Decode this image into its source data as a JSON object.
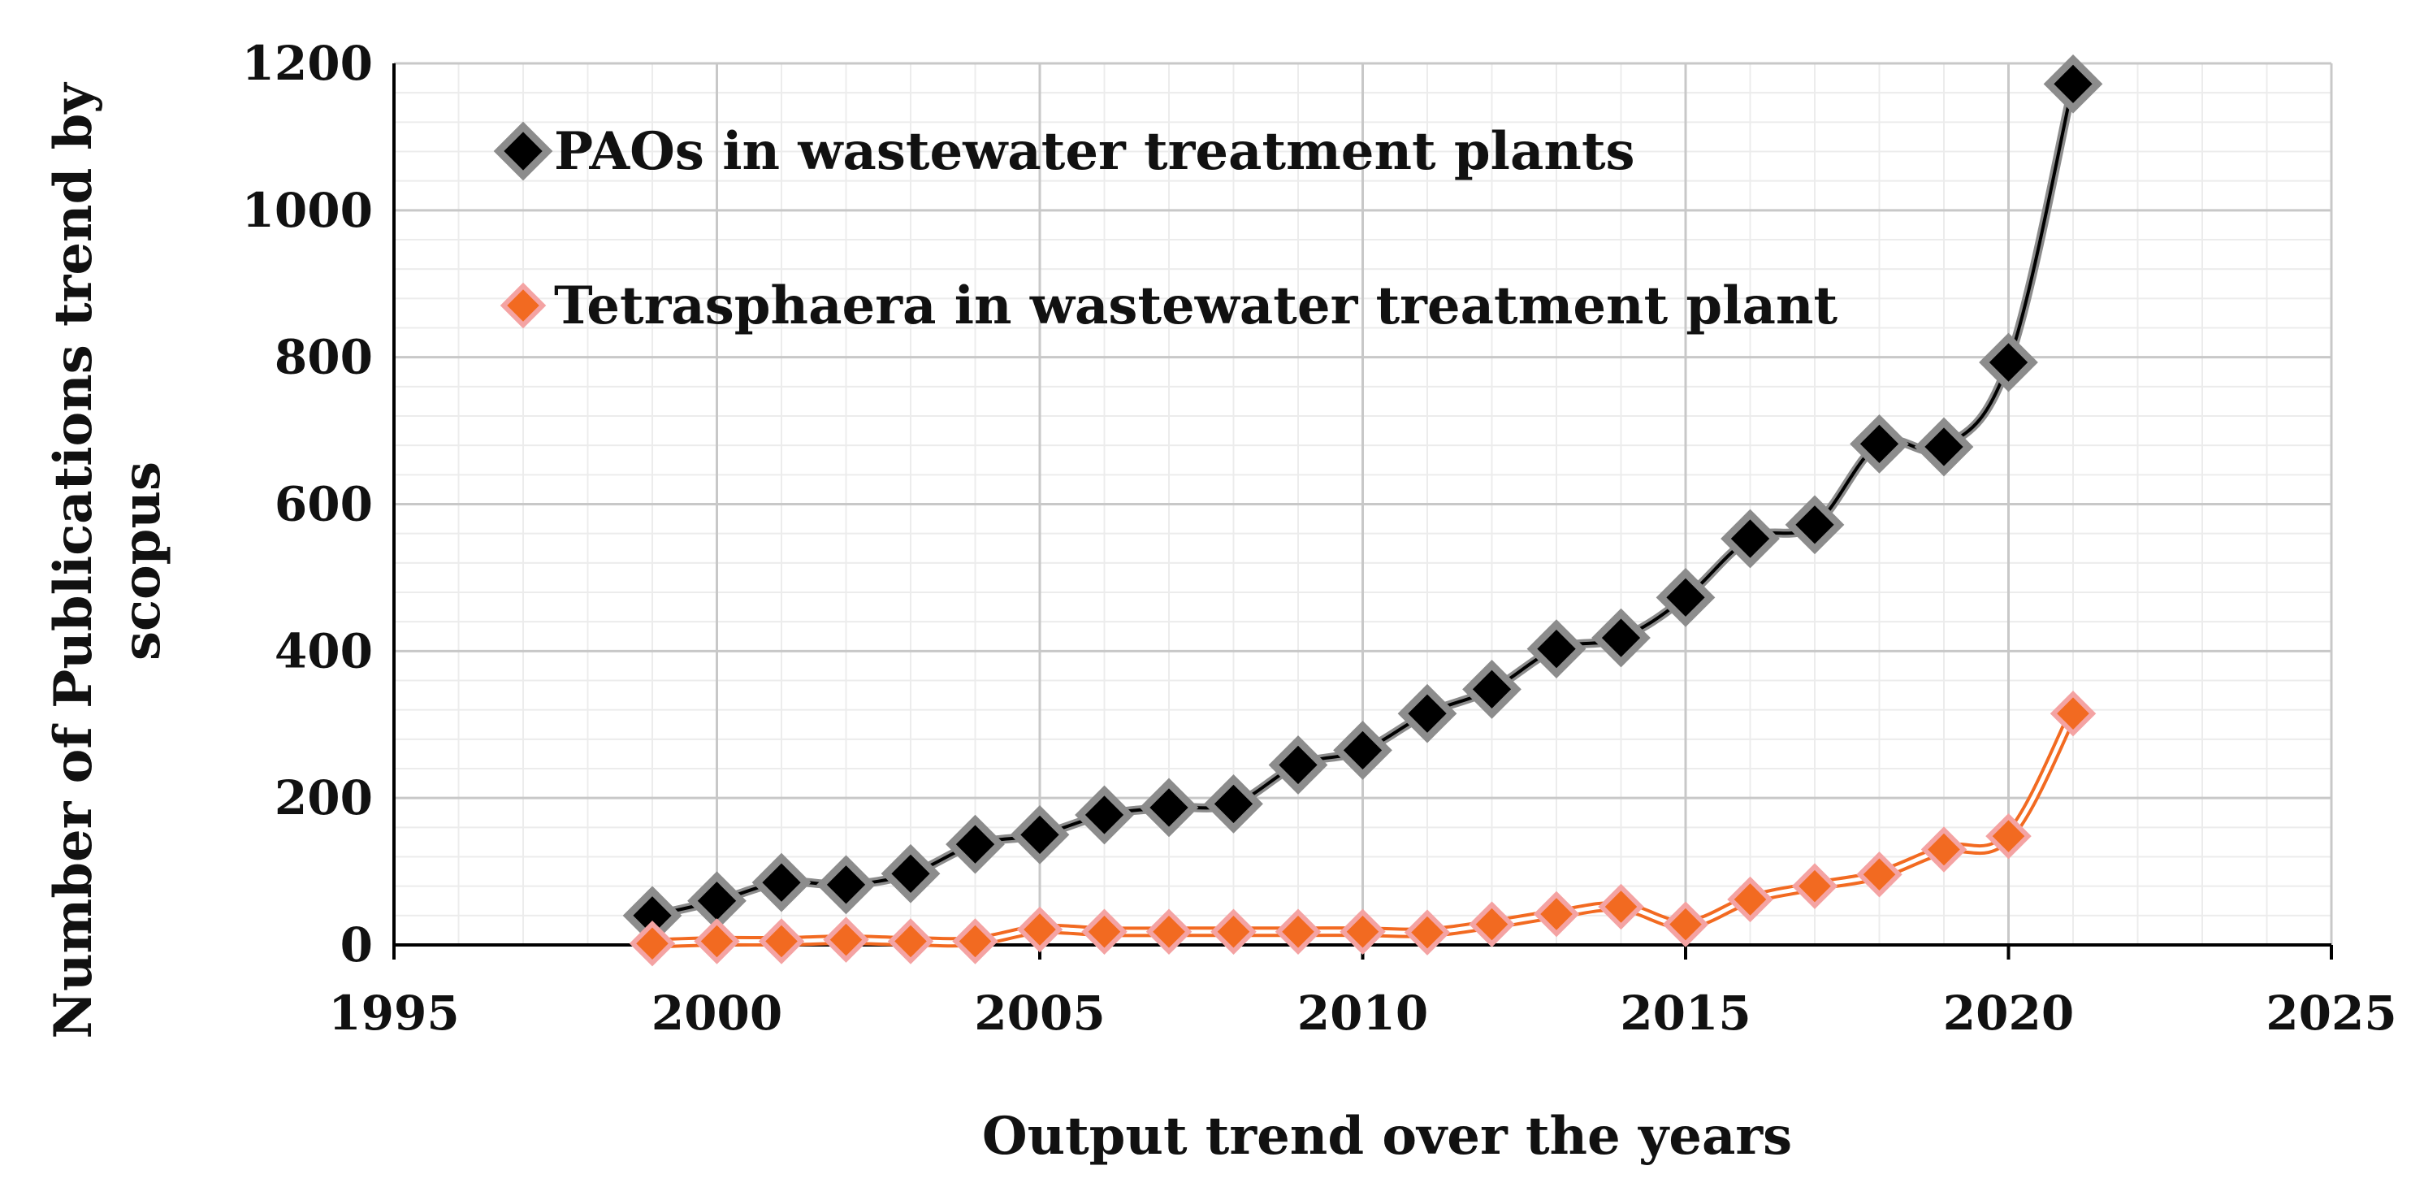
{
  "chart_data": {
    "type": "line",
    "title": "",
    "xlabel": "Output trend over the years",
    "ylabel_lines": [
      "Number of Publications trend by",
      "scopus"
    ],
    "xlim": [
      1995,
      2025
    ],
    "ylim": [
      0,
      1200
    ],
    "x_ticks": [
      1995,
      2000,
      2005,
      2010,
      2015,
      2020,
      2025
    ],
    "y_ticks": [
      0,
      200,
      400,
      600,
      800,
      1000,
      1200
    ],
    "x_minor_step": 1,
    "y_minor_step": 40,
    "grid": true,
    "legend_position": "top-left",
    "series": [
      {
        "name": "PAOs in wastewater treatment plants",
        "line_color": "#000000",
        "halo_color": "#8c8c8c",
        "marker_fill": "#000000",
        "marker_edge": "#8c8c8c",
        "x": [
          1999,
          2000,
          2001,
          2002,
          2003,
          2004,
          2005,
          2006,
          2007,
          2008,
          2009,
          2010,
          2011,
          2012,
          2013,
          2014,
          2015,
          2016,
          2017,
          2018,
          2019,
          2020,
          2021
        ],
        "values": [
          40,
          60,
          85,
          82,
          97,
          137,
          150,
          177,
          187,
          192,
          245,
          265,
          315,
          348,
          403,
          418,
          473,
          553,
          572,
          682,
          678,
          793,
          1172
        ]
      },
      {
        "name": "Tetrasphaera in wastewater treatment plant",
        "line_color": "#ffffff",
        "halo_color": "#f26a21",
        "marker_fill": "#f26a21",
        "marker_edge": "#f4a3a3",
        "x": [
          1999,
          2000,
          2001,
          2002,
          2003,
          2004,
          2005,
          2006,
          2007,
          2008,
          2009,
          2010,
          2011,
          2012,
          2013,
          2014,
          2015,
          2016,
          2017,
          2018,
          2019,
          2020,
          2021
        ],
        "values": [
          2,
          5,
          5,
          7,
          5,
          5,
          21,
          18,
          18,
          18,
          18,
          18,
          17,
          28,
          42,
          52,
          28,
          62,
          80,
          96,
          130,
          148,
          315
        ]
      }
    ]
  }
}
